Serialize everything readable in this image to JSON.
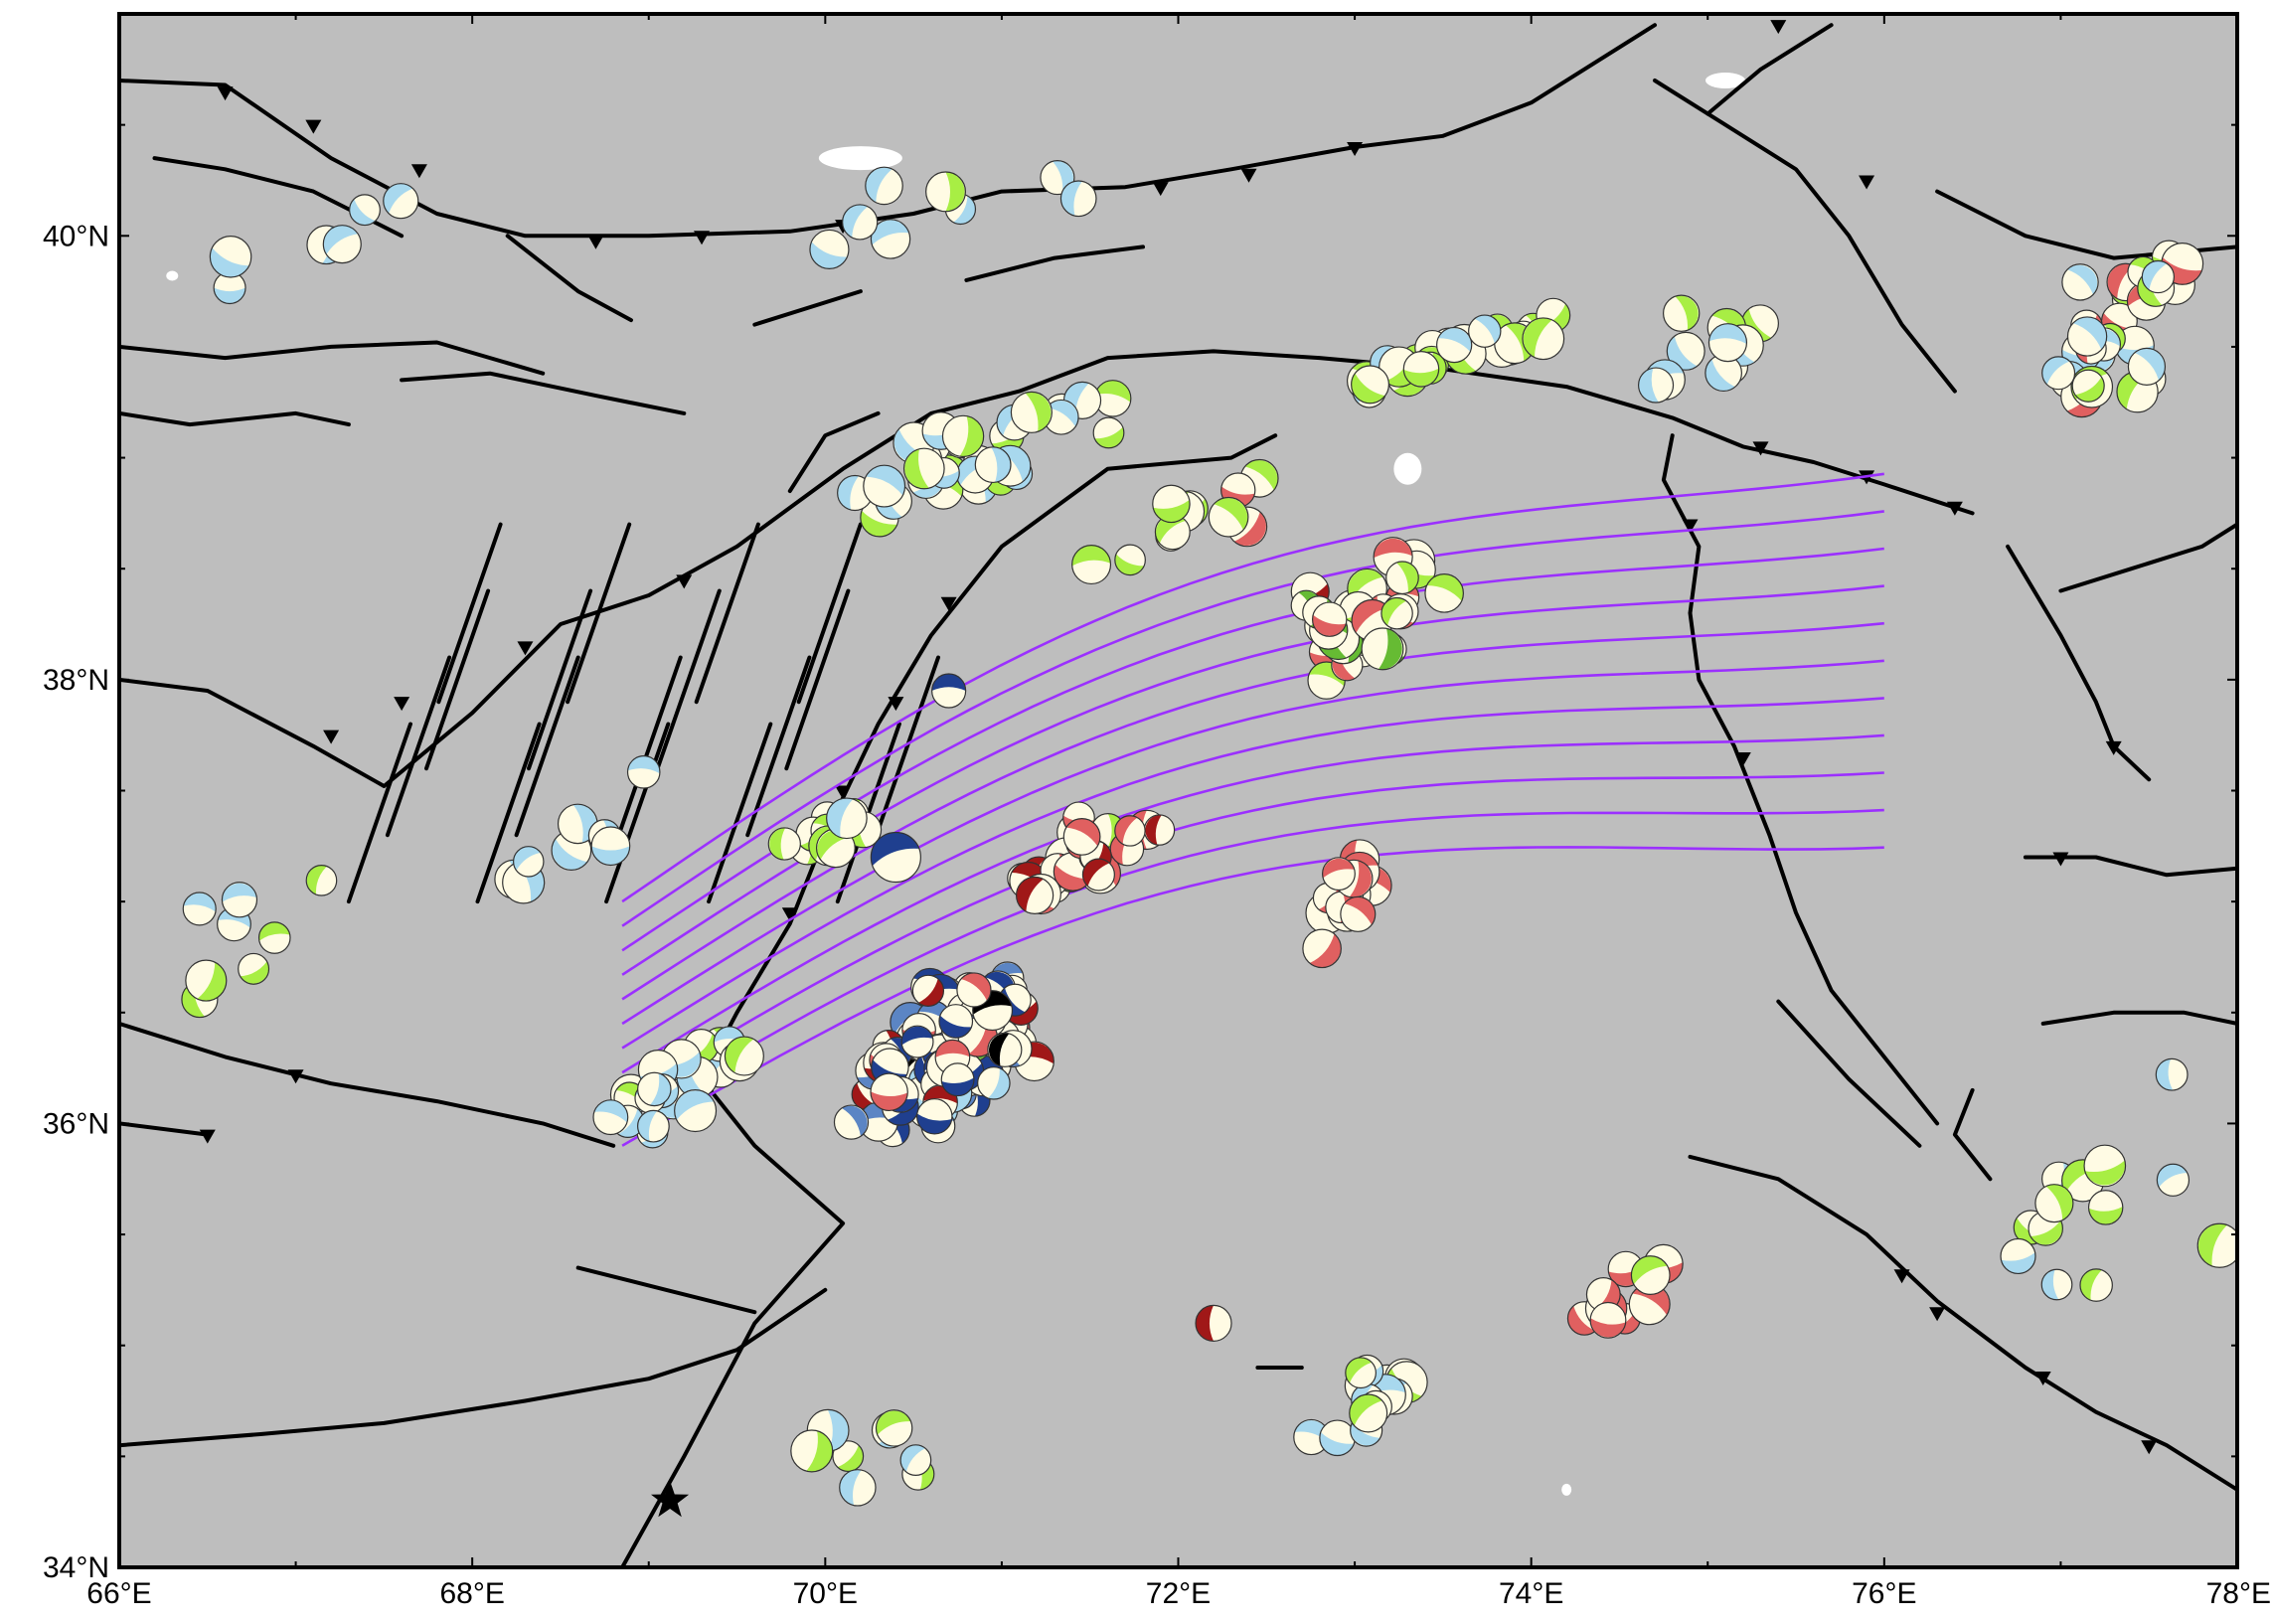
{
  "map": {
    "region": {
      "lon": [
        66,
        78
      ],
      "lat": [
        34,
        41
      ]
    },
    "land_color": "#bebebe",
    "water_color": "#ffffff",
    "fault_color": "#000000",
    "contour_color": "#9b30ff",
    "frame_color": "#000000",
    "star_marker": {
      "lon": 69.12,
      "lat": 34.3,
      "icon": "star-icon"
    },
    "x_ticks": [
      {
        "value": 66,
        "label": "66°E"
      },
      {
        "value": 68,
        "label": "68°E"
      },
      {
        "value": 70,
        "label": "70°E"
      },
      {
        "value": 72,
        "label": "72°E"
      },
      {
        "value": 74,
        "label": "74°E"
      },
      {
        "value": 76,
        "label": "76°E"
      },
      {
        "value": 78,
        "label": "78°E"
      }
    ],
    "y_ticks": [
      {
        "value": 34,
        "label": "34°N"
      },
      {
        "value": 36,
        "label": "36°N"
      },
      {
        "value": 38,
        "label": "38°N"
      },
      {
        "value": 40,
        "label": "40°N"
      }
    ],
    "mechanism_colors": {
      "dark_red": "#a01818",
      "red": "#e06060",
      "dark_blue": "#1f3f8f",
      "blue": "#5b85c4",
      "light_blue": "#a8d8ee",
      "green": "#66bb33",
      "light_green": "#a8ee44",
      "black": "#000000",
      "compressional_fill": "#fffbe4"
    }
  }
}
